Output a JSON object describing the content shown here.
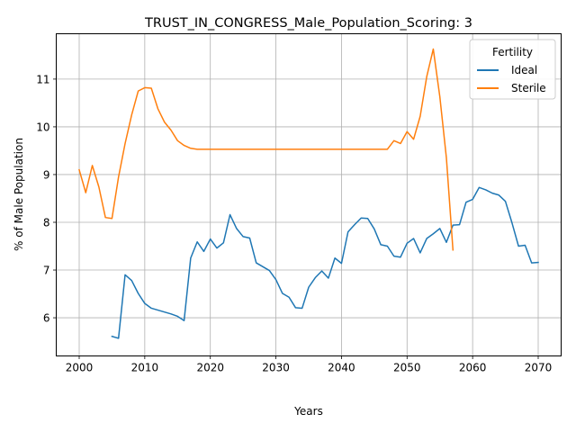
{
  "chart_data": {
    "type": "line",
    "title": "TRUST_IN_CONGRESS_Male_Population_Scoring: 3",
    "xlabel": "Years",
    "ylabel": "% of Male Population",
    "xlim": [
      1996.5,
      2073.5
    ],
    "ylim": [
      5.2,
      11.95
    ],
    "xticks": [
      2000,
      2010,
      2020,
      2030,
      2040,
      2050,
      2060,
      2070
    ],
    "yticks": [
      6,
      7,
      8,
      9,
      10,
      11
    ],
    "grid": true,
    "legend": {
      "title": "Fertility",
      "position": "top-right"
    },
    "series": [
      {
        "name": "Ideal",
        "color": "#1f77b4",
        "x": [
          2005,
          2006,
          2007,
          2008,
          2009,
          2010,
          2011,
          2012,
          2013,
          2014,
          2015,
          2016,
          2017,
          2018,
          2019,
          2020,
          2021,
          2022,
          2023,
          2024,
          2025,
          2026,
          2027,
          2028,
          2029,
          2030,
          2031,
          2032,
          2033,
          2034,
          2035,
          2036,
          2037,
          2038,
          2039,
          2040,
          2041,
          2042,
          2043,
          2044,
          2045,
          2046,
          2047,
          2048,
          2049,
          2050,
          2051,
          2052,
          2053,
          2054,
          2055,
          2056,
          2057,
          2058,
          2059,
          2060,
          2061,
          2062,
          2063,
          2064,
          2065,
          2066,
          2067,
          2068,
          2069,
          2070
        ],
        "values": [
          5.61,
          5.57,
          6.9,
          6.78,
          6.51,
          6.3,
          6.2,
          6.16,
          6.12,
          6.08,
          6.03,
          5.94,
          7.25,
          7.59,
          7.39,
          7.65,
          7.46,
          7.57,
          8.16,
          7.87,
          7.7,
          7.67,
          7.15,
          7.07,
          6.99,
          6.8,
          6.51,
          6.43,
          6.21,
          6.2,
          6.64,
          6.84,
          6.98,
          6.83,
          7.25,
          7.14,
          7.8,
          7.95,
          8.09,
          8.08,
          7.86,
          7.53,
          7.5,
          7.29,
          7.27,
          7.56,
          7.66,
          7.36,
          7.66,
          7.76,
          7.87,
          7.58,
          7.94,
          7.95,
          8.42,
          8.48,
          8.73,
          8.68,
          8.61,
          8.57,
          8.44,
          7.99,
          7.5,
          7.52,
          7.15,
          7.16
        ]
      },
      {
        "name": "Sterile",
        "color": "#ff7f0e",
        "x": [
          2000,
          2001,
          2002,
          2003,
          2004,
          2005,
          2006,
          2007,
          2008,
          2009,
          2010,
          2011,
          2012,
          2013,
          2014,
          2015,
          2016,
          2017,
          2018,
          2019,
          2020,
          2025,
          2030,
          2035,
          2040,
          2045,
          2047,
          2048,
          2049,
          2050,
          2051,
          2052,
          2053,
          2054,
          2055,
          2056,
          2057
        ],
        "values": [
          9.1,
          8.62,
          9.19,
          8.74,
          8.1,
          8.08,
          8.95,
          9.65,
          10.25,
          10.75,
          10.82,
          10.81,
          10.38,
          10.1,
          9.93,
          9.71,
          9.61,
          9.55,
          9.53,
          9.53,
          9.53,
          9.53,
          9.53,
          9.53,
          9.53,
          9.53,
          9.53,
          9.71,
          9.65,
          9.9,
          9.74,
          10.22,
          11.05,
          11.63,
          10.63,
          9.35,
          7.42
        ]
      }
    ]
  }
}
